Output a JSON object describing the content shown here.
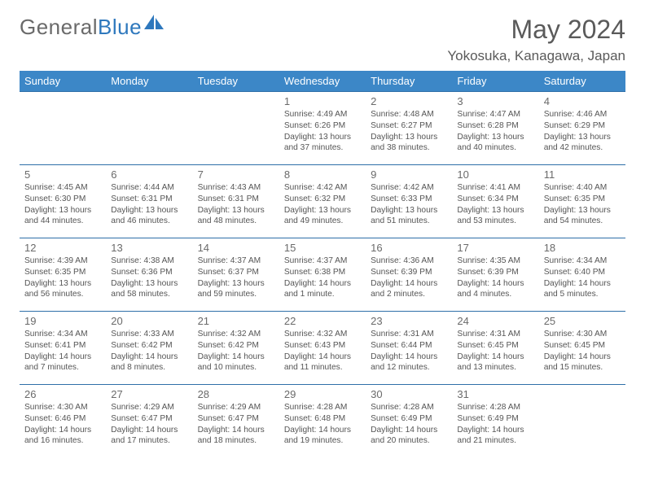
{
  "logo": {
    "part1": "General",
    "part2": "Blue"
  },
  "title": "May 2024",
  "location": "Yokosuka, Kanagawa, Japan",
  "colors": {
    "header_bg": "#3c87c7",
    "header_fg": "#ffffff",
    "row_border": "#2e6fa8",
    "logo_accent": "#2e78bd",
    "text": "#555555"
  },
  "day_headers": [
    "Sunday",
    "Monday",
    "Tuesday",
    "Wednesday",
    "Thursday",
    "Friday",
    "Saturday"
  ],
  "weeks": [
    [
      null,
      null,
      null,
      {
        "n": "1",
        "r": "4:49 AM",
        "s": "6:26 PM",
        "d": "13 hours and 37 minutes."
      },
      {
        "n": "2",
        "r": "4:48 AM",
        "s": "6:27 PM",
        "d": "13 hours and 38 minutes."
      },
      {
        "n": "3",
        "r": "4:47 AM",
        "s": "6:28 PM",
        "d": "13 hours and 40 minutes."
      },
      {
        "n": "4",
        "r": "4:46 AM",
        "s": "6:29 PM",
        "d": "13 hours and 42 minutes."
      }
    ],
    [
      {
        "n": "5",
        "r": "4:45 AM",
        "s": "6:30 PM",
        "d": "13 hours and 44 minutes."
      },
      {
        "n": "6",
        "r": "4:44 AM",
        "s": "6:31 PM",
        "d": "13 hours and 46 minutes."
      },
      {
        "n": "7",
        "r": "4:43 AM",
        "s": "6:31 PM",
        "d": "13 hours and 48 minutes."
      },
      {
        "n": "8",
        "r": "4:42 AM",
        "s": "6:32 PM",
        "d": "13 hours and 49 minutes."
      },
      {
        "n": "9",
        "r": "4:42 AM",
        "s": "6:33 PM",
        "d": "13 hours and 51 minutes."
      },
      {
        "n": "10",
        "r": "4:41 AM",
        "s": "6:34 PM",
        "d": "13 hours and 53 minutes."
      },
      {
        "n": "11",
        "r": "4:40 AM",
        "s": "6:35 PM",
        "d": "13 hours and 54 minutes."
      }
    ],
    [
      {
        "n": "12",
        "r": "4:39 AM",
        "s": "6:35 PM",
        "d": "13 hours and 56 minutes."
      },
      {
        "n": "13",
        "r": "4:38 AM",
        "s": "6:36 PM",
        "d": "13 hours and 58 minutes."
      },
      {
        "n": "14",
        "r": "4:37 AM",
        "s": "6:37 PM",
        "d": "13 hours and 59 minutes."
      },
      {
        "n": "15",
        "r": "4:37 AM",
        "s": "6:38 PM",
        "d": "14 hours and 1 minute."
      },
      {
        "n": "16",
        "r": "4:36 AM",
        "s": "6:39 PM",
        "d": "14 hours and 2 minutes."
      },
      {
        "n": "17",
        "r": "4:35 AM",
        "s": "6:39 PM",
        "d": "14 hours and 4 minutes."
      },
      {
        "n": "18",
        "r": "4:34 AM",
        "s": "6:40 PM",
        "d": "14 hours and 5 minutes."
      }
    ],
    [
      {
        "n": "19",
        "r": "4:34 AM",
        "s": "6:41 PM",
        "d": "14 hours and 7 minutes."
      },
      {
        "n": "20",
        "r": "4:33 AM",
        "s": "6:42 PM",
        "d": "14 hours and 8 minutes."
      },
      {
        "n": "21",
        "r": "4:32 AM",
        "s": "6:42 PM",
        "d": "14 hours and 10 minutes."
      },
      {
        "n": "22",
        "r": "4:32 AM",
        "s": "6:43 PM",
        "d": "14 hours and 11 minutes."
      },
      {
        "n": "23",
        "r": "4:31 AM",
        "s": "6:44 PM",
        "d": "14 hours and 12 minutes."
      },
      {
        "n": "24",
        "r": "4:31 AM",
        "s": "6:45 PM",
        "d": "14 hours and 13 minutes."
      },
      {
        "n": "25",
        "r": "4:30 AM",
        "s": "6:45 PM",
        "d": "14 hours and 15 minutes."
      }
    ],
    [
      {
        "n": "26",
        "r": "4:30 AM",
        "s": "6:46 PM",
        "d": "14 hours and 16 minutes."
      },
      {
        "n": "27",
        "r": "4:29 AM",
        "s": "6:47 PM",
        "d": "14 hours and 17 minutes."
      },
      {
        "n": "28",
        "r": "4:29 AM",
        "s": "6:47 PM",
        "d": "14 hours and 18 minutes."
      },
      {
        "n": "29",
        "r": "4:28 AM",
        "s": "6:48 PM",
        "d": "14 hours and 19 minutes."
      },
      {
        "n": "30",
        "r": "4:28 AM",
        "s": "6:49 PM",
        "d": "14 hours and 20 minutes."
      },
      {
        "n": "31",
        "r": "4:28 AM",
        "s": "6:49 PM",
        "d": "14 hours and 21 minutes."
      },
      null
    ]
  ],
  "labels": {
    "sunrise": "Sunrise: ",
    "sunset": "Sunset: ",
    "daylight": "Daylight: "
  }
}
